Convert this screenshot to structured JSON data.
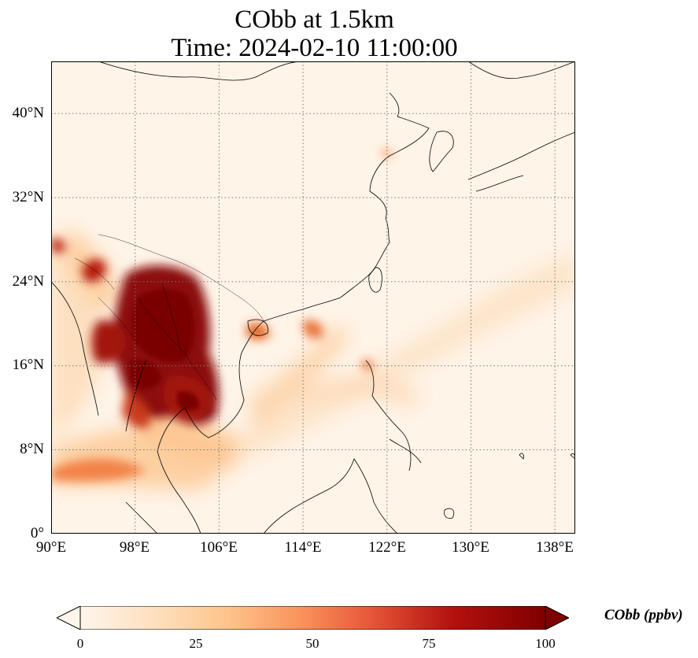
{
  "title_line1": "CObb at 1.5km",
  "title_line2": "Time: 2024-02-10 11:00:00",
  "lat_ticks": [
    "0°",
    "8°N",
    "16°N",
    "24°N",
    "32°N",
    "40°N"
  ],
  "lon_ticks": [
    "90°E",
    "98°E",
    "106°E",
    "114°E",
    "122°E",
    "130°E",
    "138°E"
  ],
  "colorbar": {
    "label": "CObb (ppbv)",
    "ticks": [
      "0",
      "25",
      "50",
      "75",
      "100"
    ],
    "min": 0,
    "max": 100,
    "extend": "both",
    "colormap": [
      "#fff5eb",
      "#fdd9b0",
      "#fdae6b",
      "#f16913",
      "#d94801",
      "#a50f0f",
      "#7f0000"
    ]
  },
  "grid": true
}
